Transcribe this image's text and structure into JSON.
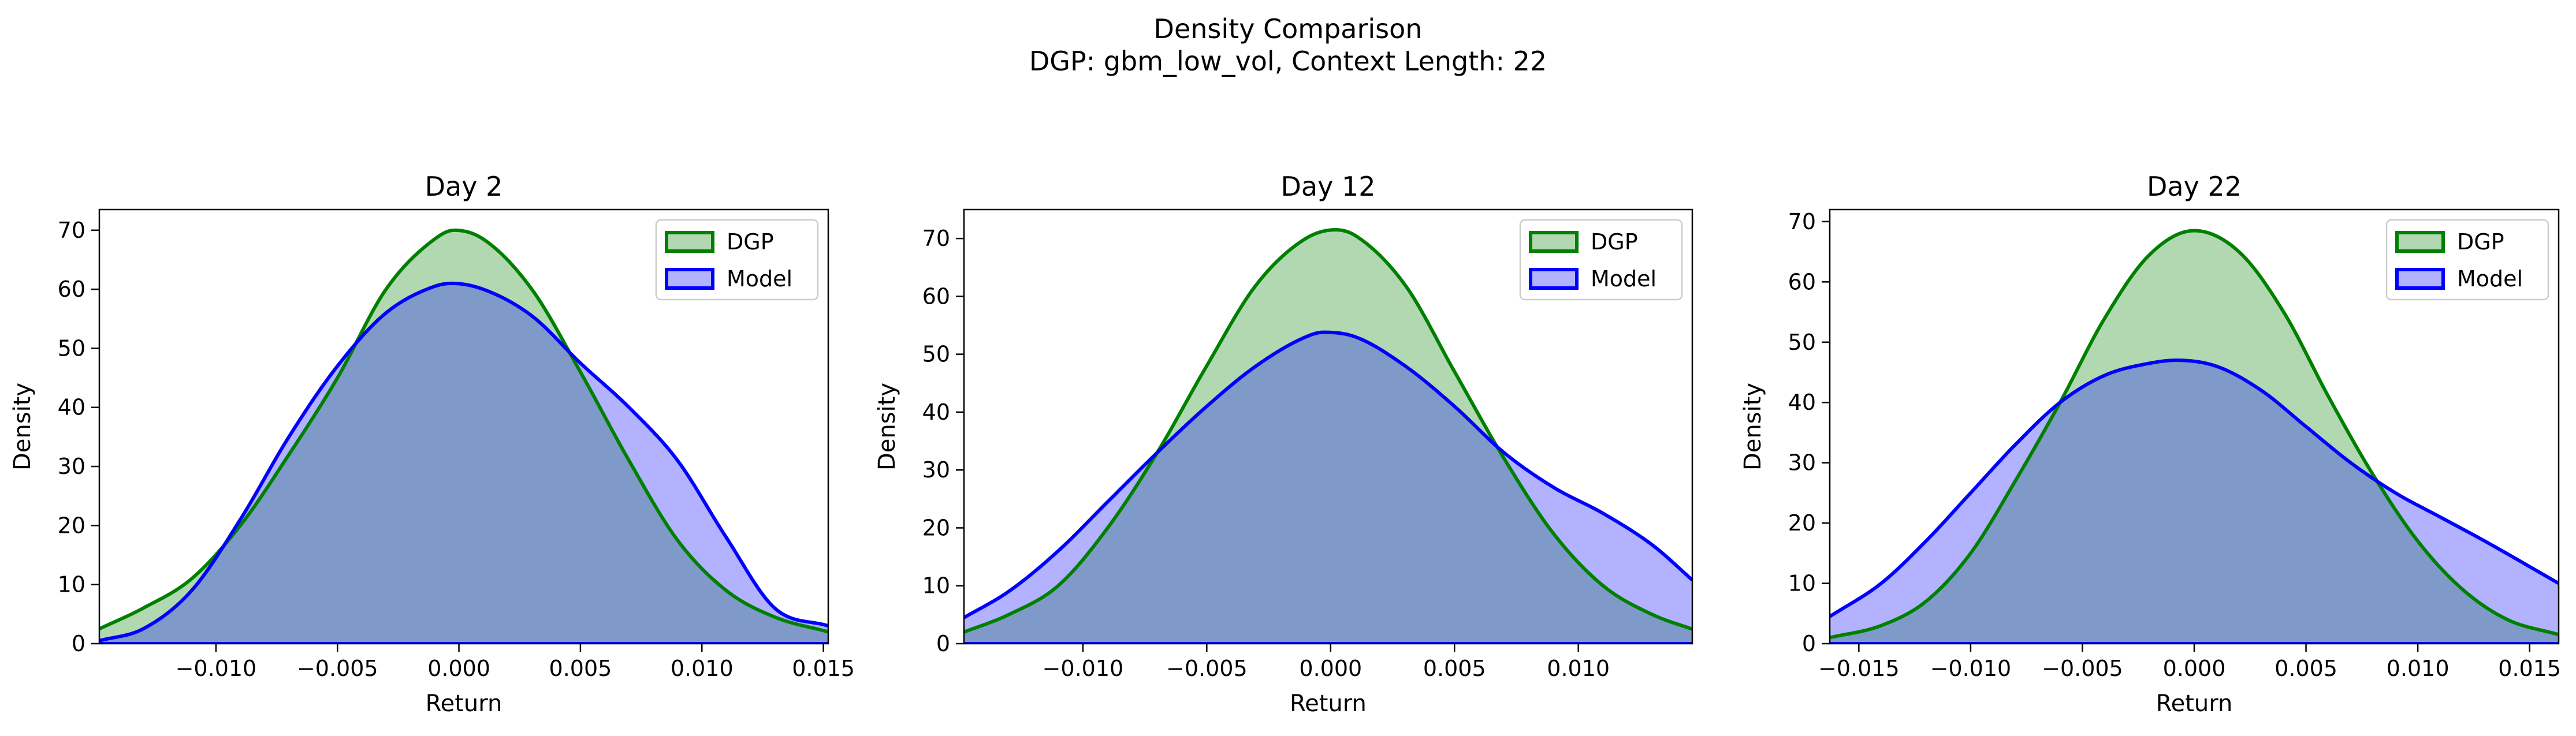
{
  "figure": {
    "title_line1": "Density Comparison",
    "title_line2": "DGP: gbm_low_vol, Context Length: 22"
  },
  "colors": {
    "dgp_line": "#008000",
    "dgp_fill": "#b2d8b2",
    "model_line": "#0000ff",
    "model_fill": "#b2b2ff",
    "overlap_fill": "#7f99c8"
  },
  "chart_data": [
    {
      "type": "area",
      "title": "Day 2",
      "xlabel": "Return",
      "ylabel": "Density",
      "xlim": [
        -0.0148,
        0.0152
      ],
      "ylim": [
        0,
        73.5
      ],
      "xticks": [
        -0.01,
        -0.005,
        0.0,
        0.005,
        0.01,
        0.015
      ],
      "xtick_labels": [
        "−0.010",
        "−0.005",
        "0.000",
        "0.005",
        "0.010",
        "0.015"
      ],
      "yticks": [
        0,
        10,
        20,
        30,
        40,
        50,
        60,
        70
      ],
      "ytick_labels": [
        "0",
        "10",
        "20",
        "30",
        "40",
        "50",
        "60",
        "70"
      ],
      "legend": {
        "placement": "top-right",
        "entries": [
          "DGP",
          "Model"
        ]
      },
      "grid": false,
      "series": [
        {
          "name": "DGP",
          "x": [
            -0.0148,
            -0.013,
            -0.011,
            -0.009,
            -0.007,
            -0.005,
            -0.003,
            -0.001,
            -0.0002,
            0.001,
            0.003,
            0.005,
            0.007,
            0.009,
            0.011,
            0.013,
            0.0152
          ],
          "y": [
            2.5,
            6,
            11,
            20,
            32,
            45,
            60,
            68.5,
            70,
            68.5,
            60,
            46,
            31,
            17.5,
            9,
            4.5,
            2
          ]
        },
        {
          "name": "Model",
          "x": [
            -0.0148,
            -0.013,
            -0.011,
            -0.009,
            -0.007,
            -0.005,
            -0.003,
            -0.001,
            -0.0003,
            0.001,
            0.003,
            0.005,
            0.007,
            0.009,
            0.011,
            0.013,
            0.0152
          ],
          "y": [
            0.5,
            2.5,
            9,
            21,
            35,
            47,
            56,
            60.5,
            61,
            60,
            55.5,
            47.5,
            40,
            31,
            18,
            6,
            3
          ]
        }
      ]
    },
    {
      "type": "area",
      "title": "Day 12",
      "xlabel": "Return",
      "ylabel": "Density",
      "xlim": [
        -0.0148,
        0.0146
      ],
      "ylim": [
        0,
        75
      ],
      "xticks": [
        -0.01,
        -0.005,
        0.0,
        0.005,
        0.01
      ],
      "xtick_labels": [
        "−0.010",
        "−0.005",
        "0.000",
        "0.005",
        "0.010"
      ],
      "yticks": [
        0,
        10,
        20,
        30,
        40,
        50,
        60,
        70
      ],
      "ytick_labels": [
        "0",
        "10",
        "20",
        "30",
        "40",
        "50",
        "60",
        "70"
      ],
      "legend": {
        "placement": "top-right",
        "entries": [
          "DGP",
          "Model"
        ]
      },
      "grid": false,
      "series": [
        {
          "name": "DGP",
          "x": [
            -0.0148,
            -0.013,
            -0.011,
            -0.009,
            -0.007,
            -0.005,
            -0.003,
            -0.001,
            0.0002,
            0.001,
            0.003,
            0.005,
            0.007,
            0.009,
            0.011,
            0.013,
            0.0146
          ],
          "y": [
            2,
            5,
            10,
            20,
            33,
            48,
            62,
            70,
            71.5,
            70.5,
            62,
            47,
            32,
            19,
            10,
            5,
            2.5
          ]
        },
        {
          "name": "Model",
          "x": [
            -0.0148,
            -0.013,
            -0.011,
            -0.009,
            -0.007,
            -0.005,
            -0.003,
            -0.001,
            -0.0003,
            0.001,
            0.003,
            0.005,
            0.007,
            0.009,
            0.011,
            0.013,
            0.0146
          ],
          "y": [
            4.5,
            9,
            16,
            24.5,
            33,
            41,
            48,
            53,
            53.8,
            53,
            48,
            41,
            33,
            27,
            22.5,
            17,
            11
          ]
        }
      ]
    },
    {
      "type": "area",
      "title": "Day 22",
      "xlabel": "Return",
      "ylabel": "Density",
      "xlim": [
        -0.0163,
        0.0163
      ],
      "ylim": [
        0,
        72
      ],
      "xticks": [
        -0.015,
        -0.01,
        -0.005,
        0.0,
        0.005,
        0.01,
        0.015
      ],
      "xtick_labels": [
        "−0.015",
        "−0.010",
        "−0.005",
        "0.000",
        "0.005",
        "0.010",
        "0.015"
      ],
      "yticks": [
        0,
        10,
        20,
        30,
        40,
        50,
        60,
        70
      ],
      "ytick_labels": [
        "0",
        "10",
        "20",
        "30",
        "40",
        "50",
        "60",
        "70"
      ],
      "legend": {
        "placement": "top-right",
        "entries": [
          "DGP",
          "Model"
        ]
      },
      "grid": false,
      "series": [
        {
          "name": "DGP",
          "x": [
            -0.0163,
            -0.014,
            -0.012,
            -0.01,
            -0.008,
            -0.006,
            -0.004,
            -0.002,
            0.0,
            0.002,
            0.004,
            0.006,
            0.008,
            0.01,
            0.012,
            0.014,
            0.0163
          ],
          "y": [
            1,
            3,
            7,
            15,
            27,
            40,
            54,
            64.5,
            68.5,
            65,
            55,
            41,
            28,
            17,
            9,
            4,
            1.5
          ]
        },
        {
          "name": "Model",
          "x": [
            -0.0163,
            -0.014,
            -0.012,
            -0.01,
            -0.008,
            -0.006,
            -0.004,
            -0.002,
            -0.0008,
            0.001,
            0.003,
            0.005,
            0.007,
            0.009,
            0.011,
            0.013,
            0.0163
          ],
          "y": [
            4.5,
            10,
            17,
            25,
            33,
            40,
            44.5,
            46.5,
            47,
            46,
            42,
            36,
            30,
            25,
            21,
            17,
            10
          ]
        }
      ]
    }
  ]
}
